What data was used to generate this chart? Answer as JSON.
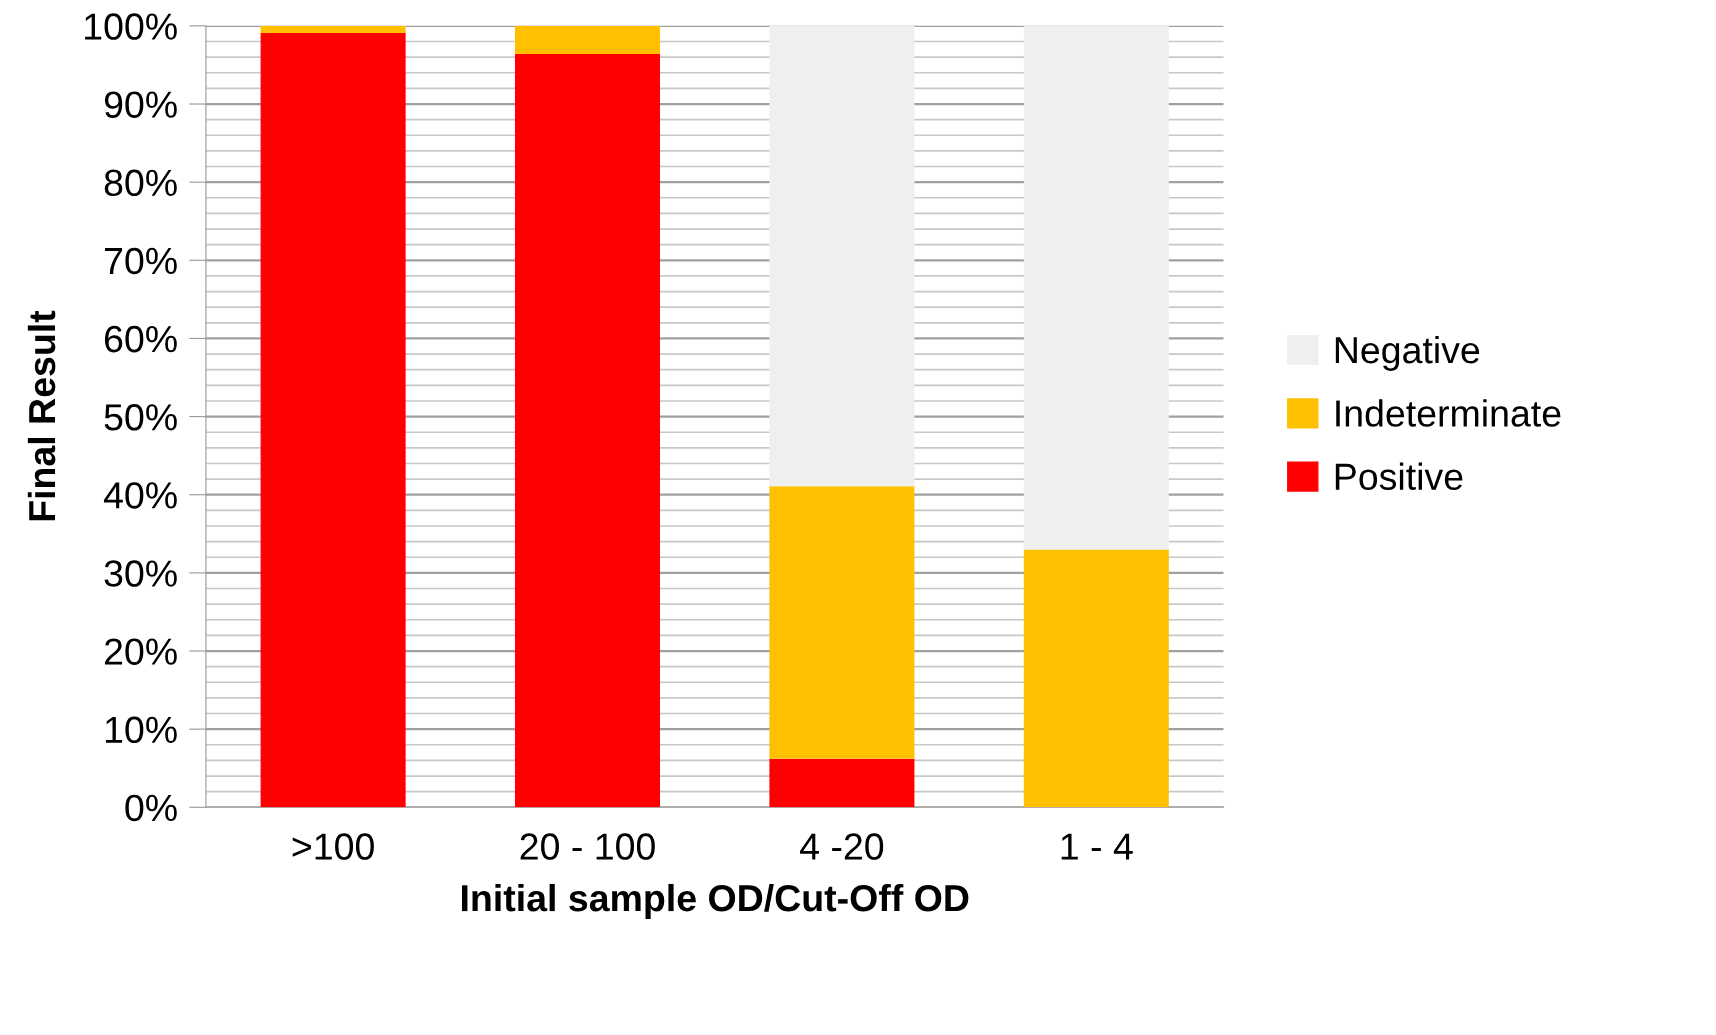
{
  "chart_data": {
    "type": "bar",
    "stacked": true,
    "xlabel": "Initial sample OD/Cut-Off OD",
    "ylabel": "Final Result",
    "categories": [
      ">100",
      "20 - 100",
      "4 -20",
      "1 - 4"
    ],
    "series": [
      {
        "name": "Positive",
        "color": "#ff0000",
        "values": [
          99.1,
          96.4,
          6.2,
          0
        ]
      },
      {
        "name": "Indeterminate",
        "color": "#ffc000",
        "values": [
          0.9,
          3.6,
          34.9,
          33.0
        ]
      },
      {
        "name": "Negative",
        "color": "#efefef",
        "values": [
          0,
          0,
          58.9,
          67.0
        ]
      }
    ],
    "ylim": [
      0,
      100
    ],
    "yticks": [
      {
        "value": 0,
        "label": "0%"
      },
      {
        "value": 10,
        "label": "10%"
      },
      {
        "value": 20,
        "label": "20%"
      },
      {
        "value": 30,
        "label": "30%"
      },
      {
        "value": 40,
        "label": "40%"
      },
      {
        "value": 50,
        "label": "50%"
      },
      {
        "value": 60,
        "label": "60%"
      },
      {
        "value": 70,
        "label": "70%"
      },
      {
        "value": 80,
        "label": "80%"
      },
      {
        "value": 90,
        "label": "90%"
      },
      {
        "value": 100,
        "label": "100%"
      }
    ],
    "grid": "y",
    "legend": "right"
  }
}
